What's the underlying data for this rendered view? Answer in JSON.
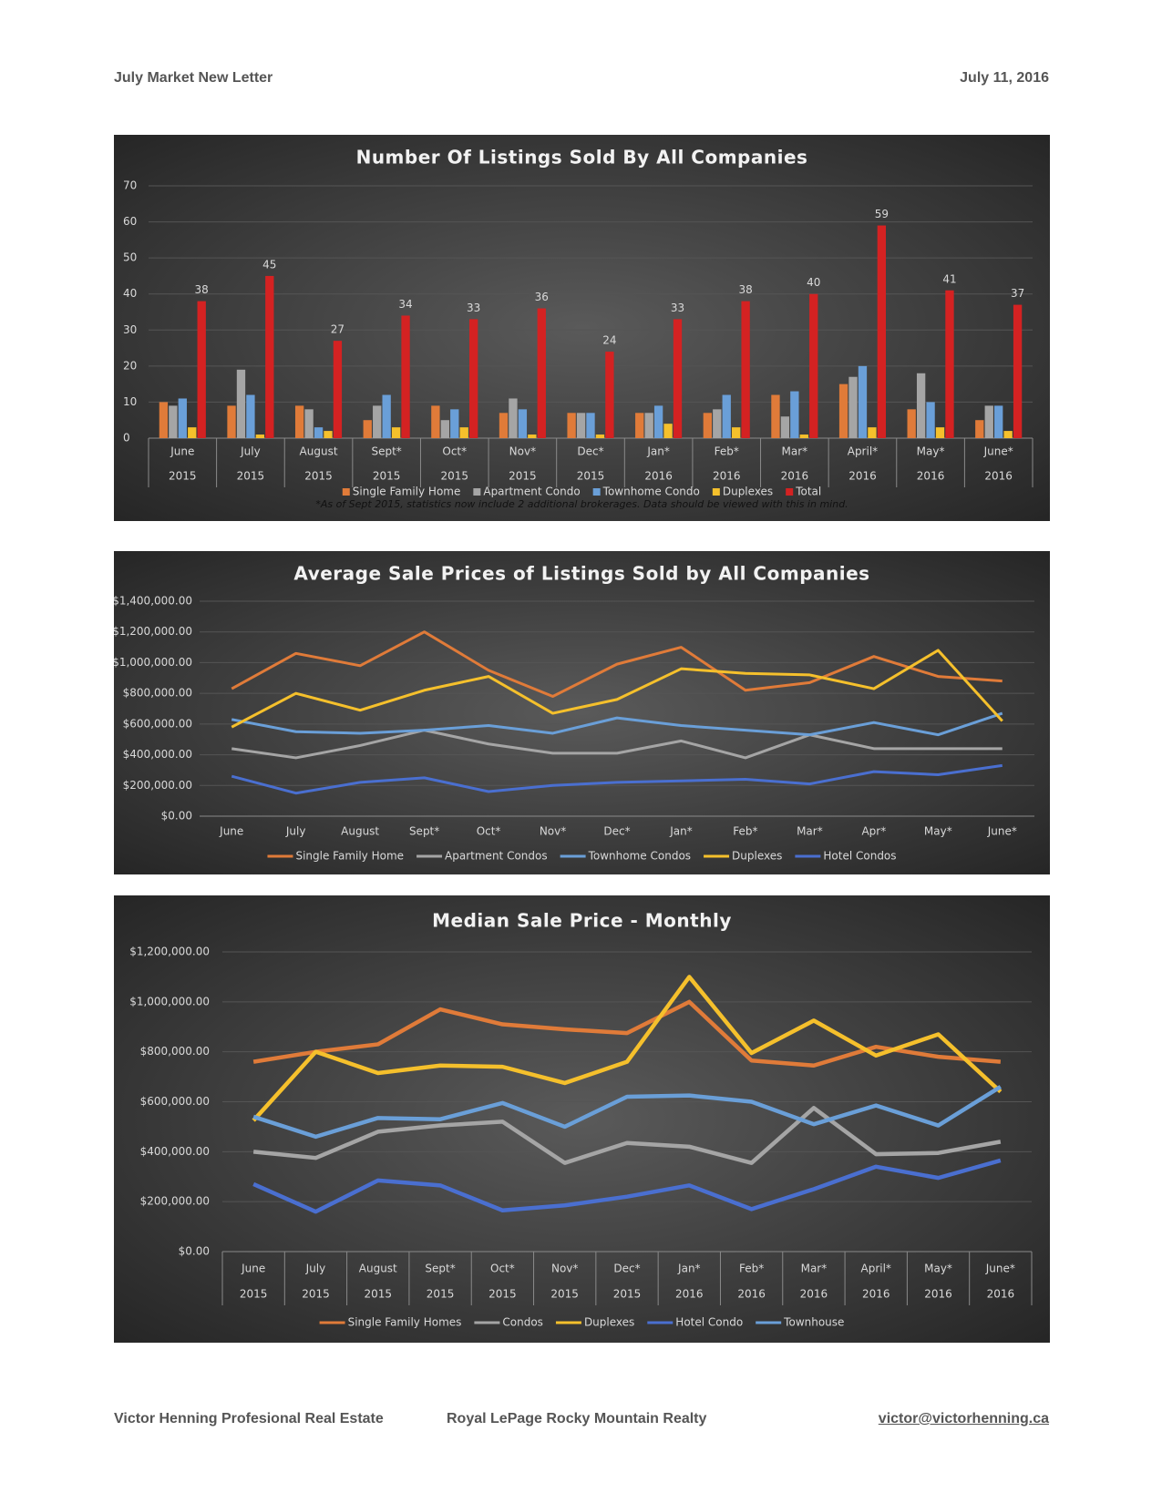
{
  "header": {
    "title": "July Market New Letter",
    "date": "July 11, 2016"
  },
  "chart_data": [
    {
      "type": "bar",
      "title": "Number Of Listings Sold By All Companies",
      "categories": [
        "June",
        "July",
        "August",
        "Sept*",
        "Oct*",
        "Nov*",
        "Dec*",
        "Jan*",
        "Feb*",
        "Mar*",
        "April*",
        "May*",
        "June*"
      ],
      "years": [
        "2015",
        "2015",
        "2015",
        "2015",
        "2015",
        "2015",
        "2015",
        "2016",
        "2016",
        "2016",
        "2016",
        "2016",
        "2016"
      ],
      "series": [
        {
          "name": "Single Family Home",
          "color": "#e07b39",
          "values": [
            10,
            9,
            9,
            5,
            9,
            7,
            7,
            7,
            7,
            12,
            15,
            8,
            5
          ]
        },
        {
          "name": "Apartment Condo",
          "color": "#a5a5a5",
          "values": [
            9,
            19,
            8,
            9,
            5,
            11,
            7,
            7,
            8,
            6,
            17,
            18,
            9
          ]
        },
        {
          "name": "Townhome Condo",
          "color": "#6a9fd8",
          "values": [
            11,
            12,
            3,
            12,
            8,
            8,
            7,
            9,
            12,
            13,
            20,
            10,
            9
          ]
        },
        {
          "name": "Duplexes",
          "color": "#f5c02c",
          "values": [
            3,
            1,
            2,
            3,
            3,
            1,
            1,
            4,
            3,
            1,
            3,
            3,
            2
          ]
        },
        {
          "name": "Total",
          "color": "#d42222",
          "data_labels": true,
          "values": [
            38,
            45,
            27,
            34,
            33,
            36,
            24,
            33,
            38,
            40,
            59,
            41,
            37
          ]
        }
      ],
      "ylim": [
        0,
        70
      ],
      "yticks": [
        0,
        10,
        20,
        30,
        40,
        50,
        60,
        70
      ],
      "grid": true,
      "note": "*As of Sept 2015, statistics now include 2 additional brokerages. Data should be viewed with this in mind."
    },
    {
      "type": "line",
      "title": "Average Sale Prices of Listings Sold by All Companies",
      "categories": [
        "June",
        "July",
        "August",
        "Sept*",
        "Oct*",
        "Nov*",
        "Dec*",
        "Jan*",
        "Feb*",
        "Mar*",
        "Apr*",
        "May*",
        "June*"
      ],
      "series": [
        {
          "name": "Single Family Home",
          "color": "#e07b39",
          "values": [
            830000,
            1060000,
            980000,
            1200000,
            950000,
            780000,
            990000,
            1100000,
            820000,
            870000,
            1040000,
            910000,
            880000
          ]
        },
        {
          "name": "Apartment Condos",
          "color": "#a5a5a5",
          "values": [
            440000,
            380000,
            460000,
            560000,
            470000,
            410000,
            410000,
            490000,
            380000,
            530000,
            440000,
            440000,
            440000
          ]
        },
        {
          "name": "Townhome Condos",
          "color": "#6a9fd8",
          "values": [
            630000,
            550000,
            540000,
            560000,
            590000,
            540000,
            640000,
            590000,
            560000,
            530000,
            610000,
            530000,
            670000
          ]
        },
        {
          "name": "Duplexes",
          "color": "#f5c02c",
          "values": [
            580000,
            800000,
            690000,
            820000,
            910000,
            670000,
            760000,
            960000,
            930000,
            920000,
            830000,
            1080000,
            620000
          ]
        },
        {
          "name": "Hotel Condos",
          "color": "#4a6fd0",
          "values": [
            260000,
            150000,
            220000,
            250000,
            160000,
            200000,
            220000,
            230000,
            240000,
            210000,
            290000,
            270000,
            330000
          ]
        }
      ],
      "ylim": [
        0,
        1400000
      ],
      "yticks": [
        {
          "value": 0,
          "label": "$0.00"
        },
        {
          "value": 200000,
          "label": "$200,000.00"
        },
        {
          "value": 400000,
          "label": "$400,000.00"
        },
        {
          "value": 600000,
          "label": "$600,000.00"
        },
        {
          "value": 800000,
          "label": "$800,000.00"
        },
        {
          "value": 1000000,
          "label": "$1,000,000.00"
        },
        {
          "value": 1200000,
          "label": "$1,200,000.00"
        },
        {
          "value": 1400000,
          "label": "$1,400,000.00"
        }
      ],
      "grid": true
    },
    {
      "type": "line",
      "title": "Median Sale Price - Monthly",
      "categories": [
        "June",
        "July",
        "August",
        "Sept*",
        "Oct*",
        "Nov*",
        "Dec*",
        "Jan*",
        "Feb*",
        "Mar*",
        "April*",
        "May*",
        "June*"
      ],
      "years": [
        "2015",
        "2015",
        "2015",
        "2015",
        "2015",
        "2015",
        "2015",
        "2016",
        "2016",
        "2016",
        "2016",
        "2016",
        "2016"
      ],
      "series": [
        {
          "name": "Single Family Homes",
          "color": "#e07b39",
          "values": [
            760000,
            800000,
            830000,
            970000,
            910000,
            890000,
            875000,
            1000000,
            765000,
            745000,
            820000,
            780000,
            760000
          ]
        },
        {
          "name": "Condos",
          "color": "#a5a5a5",
          "values": [
            400000,
            375000,
            480000,
            505000,
            520000,
            355000,
            435000,
            420000,
            355000,
            575000,
            390000,
            395000,
            440000
          ]
        },
        {
          "name": "Duplexes",
          "color": "#f5c02c",
          "values": [
            525000,
            800000,
            715000,
            745000,
            740000,
            675000,
            760000,
            1100000,
            795000,
            925000,
            785000,
            870000,
            640000
          ]
        },
        {
          "name": "Hotel Condo",
          "color": "#4a6fd0",
          "values": [
            270000,
            160000,
            285000,
            265000,
            165000,
            185000,
            220000,
            265000,
            170000,
            250000,
            340000,
            295000,
            365000
          ]
        },
        {
          "name": "Townhouse",
          "color": "#6a9fd8",
          "values": [
            540000,
            460000,
            535000,
            530000,
            595000,
            500000,
            620000,
            625000,
            600000,
            510000,
            585000,
            505000,
            660000
          ]
        }
      ],
      "ylim": [
        0,
        1200000
      ],
      "yticks": [
        {
          "value": 0,
          "label": "$0.00"
        },
        {
          "value": 200000,
          "label": "$200,000.00"
        },
        {
          "value": 400000,
          "label": "$400,000.00"
        },
        {
          "value": 600000,
          "label": "$600,000.00"
        },
        {
          "value": 800000,
          "label": "$800,000.00"
        },
        {
          "value": 1000000,
          "label": "$1,000,000.00"
        },
        {
          "value": 1200000,
          "label": "$1,200,000.00"
        }
      ],
      "grid": true
    }
  ],
  "footer": {
    "left": "Victor Henning Profesional Real Estate",
    "center": "Royal LePage Rocky Mountain Realty",
    "right": "victor@victorhenning.ca"
  }
}
